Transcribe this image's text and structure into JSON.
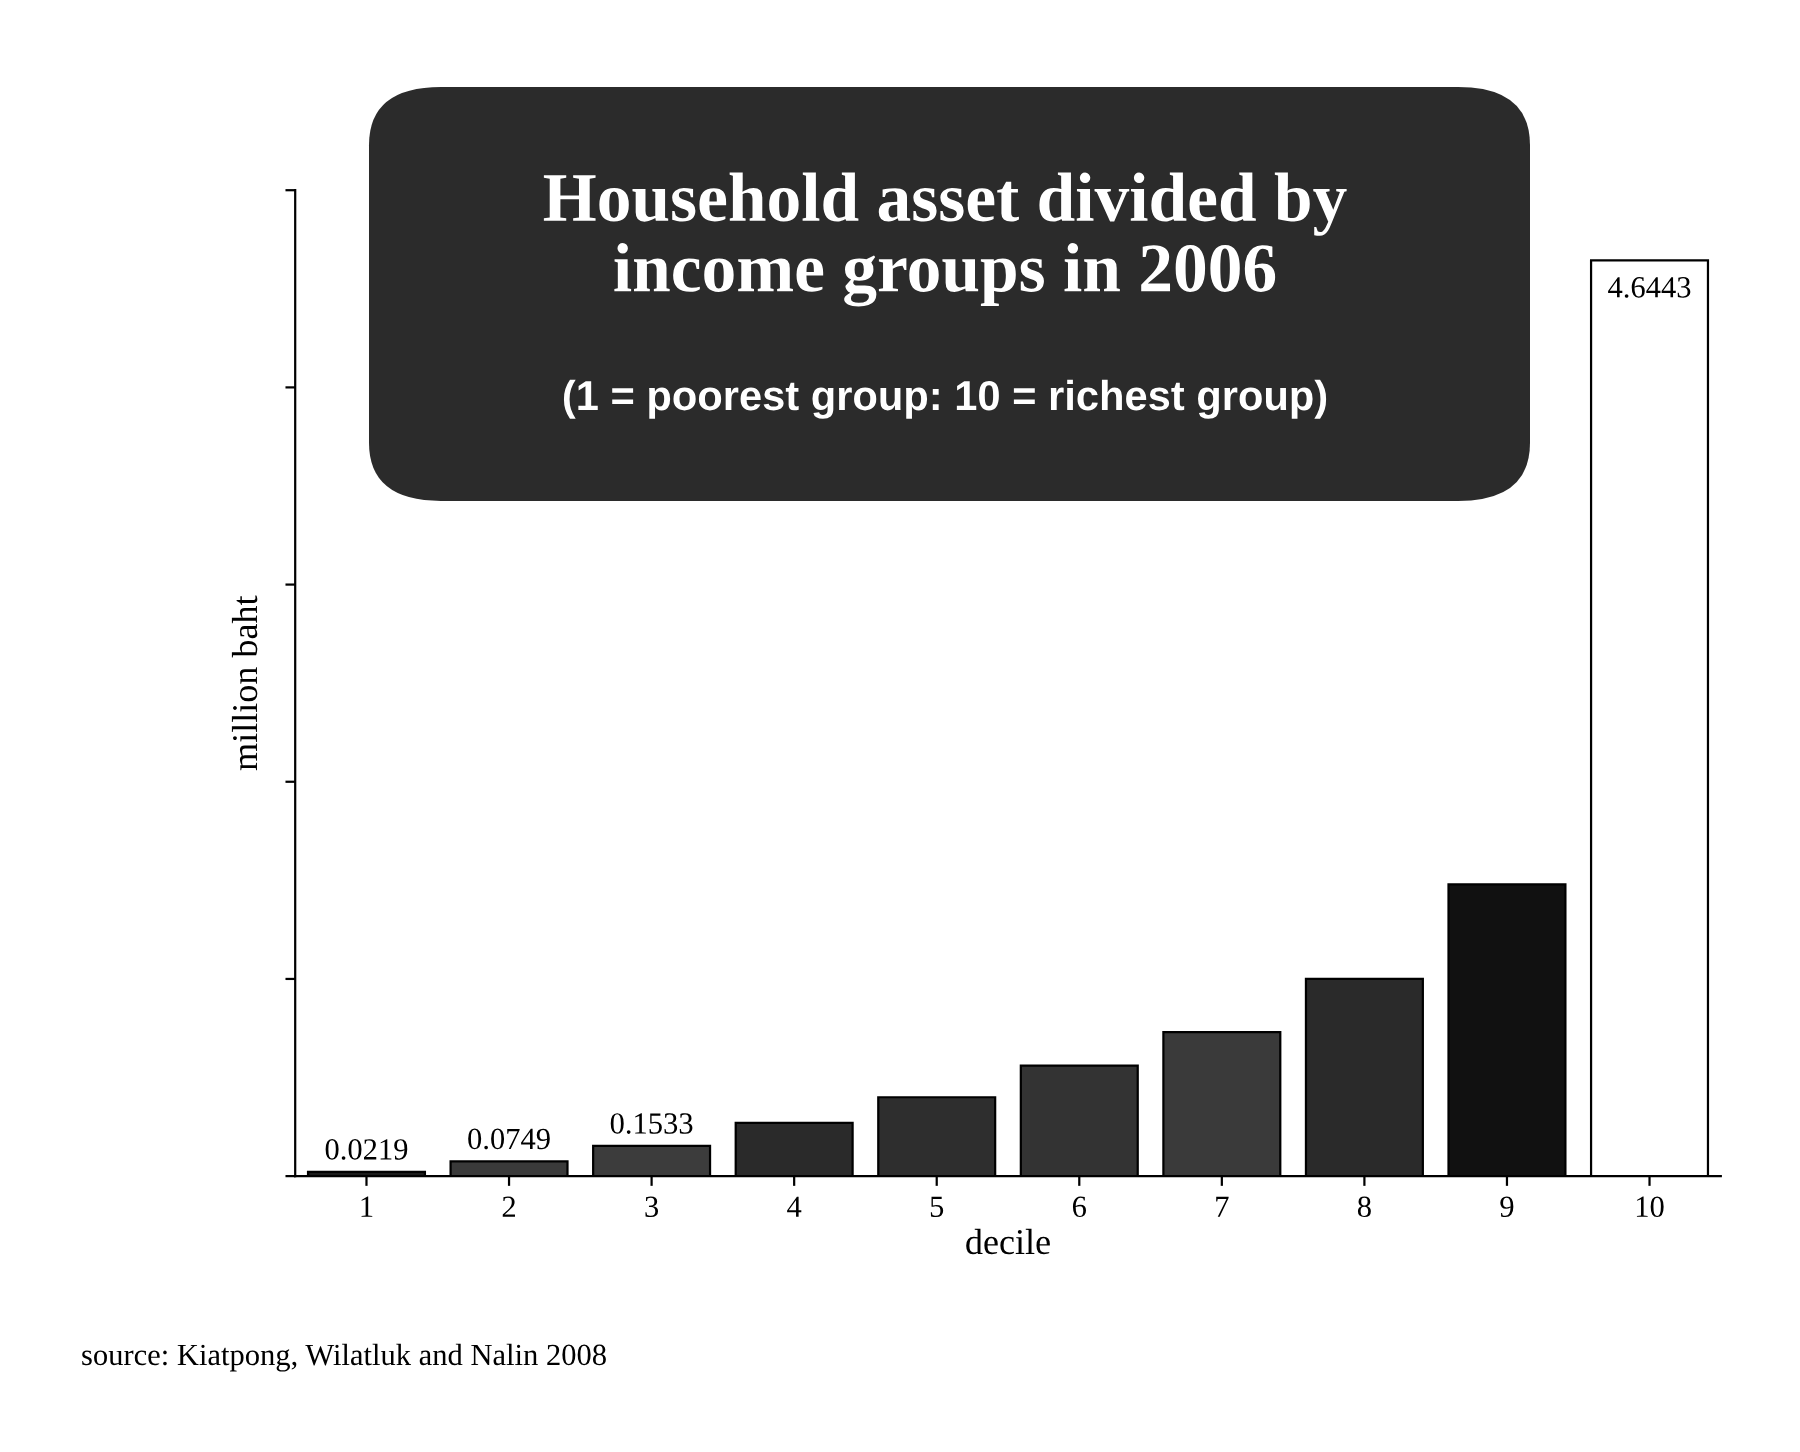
{
  "chart_data": {
    "type": "bar",
    "title": "Household asset divided by\nincome groups in 2006",
    "subtitle": "(1 = poorest group: 10 = richest group)",
    "xlabel": "decile",
    "ylabel": "million baht",
    "categories": [
      "1",
      "2",
      "3",
      "4",
      "5",
      "6",
      "7",
      "8",
      "9",
      "10"
    ],
    "values": [
      0.0219,
      0.0749,
      0.1533,
      0.27,
      0.4,
      0.56,
      0.73,
      1.0,
      1.48,
      4.6443
    ],
    "value_labels": [
      "0.0219",
      "0.0749",
      "0.1533",
      null,
      null,
      null,
      null,
      null,
      null,
      "4.6443"
    ],
    "colors": [
      "#1a1a1a",
      "#3a3a3a",
      "#3c3c3c",
      "#2a2a2a",
      "#2e2e2e",
      "#333333",
      "#3a3a3a",
      "#2a2a2a",
      "#111111",
      "#ffffff"
    ],
    "ylim": [
      0,
      5
    ],
    "yticks": [
      {
        "value": 0,
        "label": null
      },
      {
        "value": 1,
        "label": null
      },
      {
        "value": 2,
        "label": null
      },
      {
        "value": 3,
        "label": null
      },
      {
        "value": 4,
        "label": null
      },
      {
        "value": 5,
        "label": null
      }
    ],
    "grid": false,
    "legend": false,
    "annotations": [
      "source: Kiatpong, Wilatluk and Nalin 2008"
    ]
  }
}
